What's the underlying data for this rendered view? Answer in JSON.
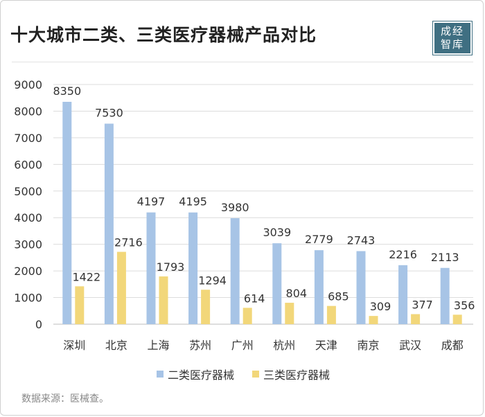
{
  "title": "十大城市二类、三类医疗器械产品对比",
  "logo_text": "成经智库",
  "source": "数据来源：医械查。",
  "colors": {
    "series1": "#a7c4e6",
    "series2": "#f2d77a",
    "grid": "#dcdcdc",
    "text": "#333333"
  },
  "chart_data": {
    "type": "bar",
    "title": "十大城市二类、三类医疗器械产品对比",
    "categories": [
      "深圳",
      "北京",
      "上海",
      "苏州",
      "广州",
      "杭州",
      "天津",
      "南京",
      "武汉",
      "成都"
    ],
    "series": [
      {
        "name": "二类医疗器械",
        "values": [
          8350,
          7530,
          4197,
          4195,
          3980,
          3039,
          2779,
          2743,
          2216,
          2113
        ]
      },
      {
        "name": "三类医疗器械",
        "values": [
          1422,
          2716,
          1793,
          1294,
          614,
          804,
          685,
          309,
          377,
          356
        ]
      }
    ],
    "ylim": [
      0,
      9000
    ],
    "yticks": [
      0,
      1000,
      2000,
      3000,
      4000,
      5000,
      6000,
      7000,
      8000,
      9000
    ],
    "grid": true,
    "legend_position": "bottom",
    "data_labels": true
  }
}
